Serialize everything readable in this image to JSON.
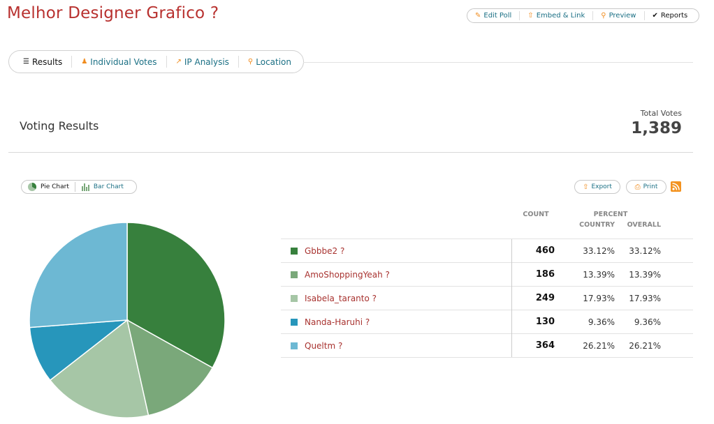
{
  "page": {
    "title": "Melhor Designer Grafico ?",
    "actions": [
      {
        "label": "Edit Poll",
        "icon": "pencil-icon"
      },
      {
        "label": "Embed & Link",
        "icon": "upload-icon"
      },
      {
        "label": "Preview",
        "icon": "magnifier-icon"
      },
      {
        "label": "Reports",
        "icon": "checkmark-icon"
      }
    ],
    "tabs": [
      {
        "label": "Results",
        "icon": "list-icon"
      },
      {
        "label": "Individual Votes",
        "icon": "person-icon"
      },
      {
        "label": "IP Analysis",
        "icon": "chart-icon"
      },
      {
        "label": "Location",
        "icon": "location-pin-icon"
      }
    ]
  },
  "results": {
    "heading": "Voting Results",
    "total_label": "Total Votes",
    "total_value": "1,389",
    "chart_types": [
      "Pie Chart",
      "Bar Chart"
    ],
    "export_label": "Export",
    "print_label": "Print",
    "columns": {
      "count": "COUNT",
      "percent": "PERCENT",
      "country": "COUNTRY",
      "overall": "OVERALL"
    },
    "rows": [
      {
        "name": "Gbbbe2 ?",
        "count": "460",
        "country": "33.12%",
        "overall": "33.12%"
      },
      {
        "name": "AmoShoppingYeah ?",
        "count": "186",
        "country": "13.39%",
        "overall": "13.39%"
      },
      {
        "name": "Isabela_taranto ?",
        "count": "249",
        "country": "17.93%",
        "overall": "17.93%"
      },
      {
        "name": "Nanda-Haruhi ?",
        "count": "130",
        "country": "9.36%",
        "overall": "9.36%"
      },
      {
        "name": "Queltm ?",
        "count": "364",
        "country": "26.21%",
        "overall": "26.21%"
      }
    ]
  },
  "colors": {
    "accent_red": "#b8312f",
    "link": "#1a6f84",
    "series": [
      "#37803d",
      "#7aa87a",
      "#a6c6a6",
      "#2796bb",
      "#6db8d3"
    ]
  },
  "chart_data": {
    "type": "pie",
    "categories": [
      "Gbbbe2 ?",
      "AmoShoppingYeah ?",
      "Isabela_taranto ?",
      "Nanda-Haruhi ?",
      "Queltm ?"
    ],
    "values": [
      460,
      186,
      249,
      130,
      364
    ]
  }
}
